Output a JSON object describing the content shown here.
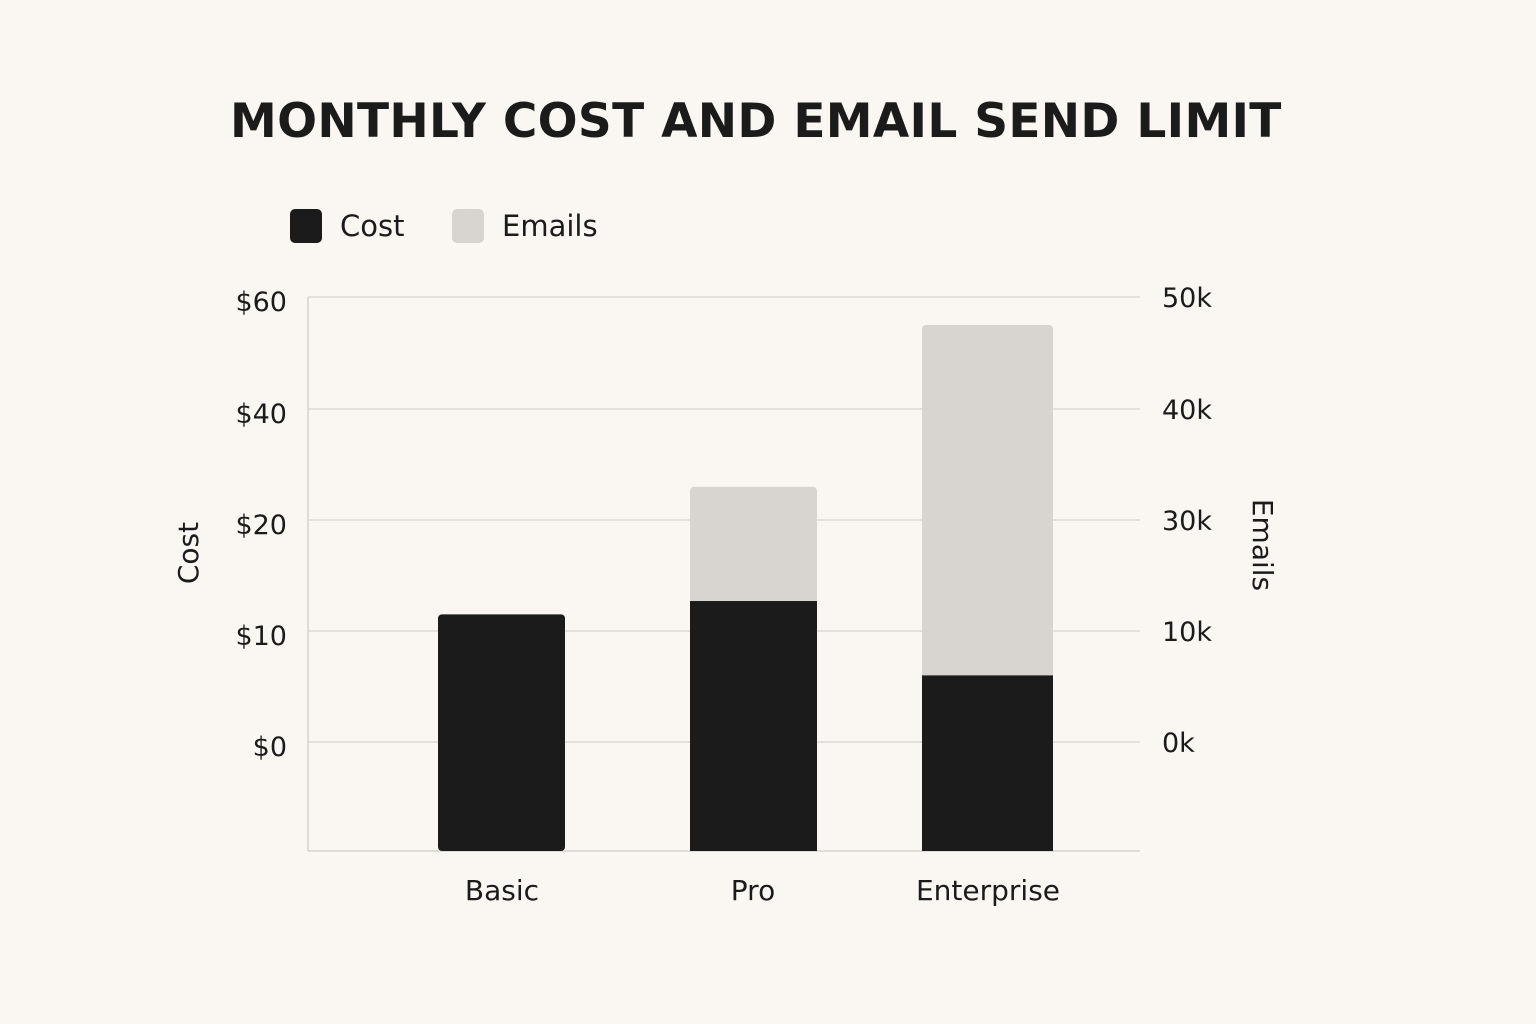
{
  "chart_data": {
    "type": "bar",
    "title": "MONTHLY COST AND EMAIL SEND LIMIT",
    "categories": [
      "Basic",
      "Pro",
      "Enterprise"
    ],
    "series": [
      {
        "name": "Cost",
        "axis": "left",
        "color": "#1b1b1b",
        "values": [
          11.5,
          12.7,
          6
        ]
      },
      {
        "name": "Emails",
        "axis": "right",
        "color": "#d8d4d0",
        "values": [
          0,
          33,
          47.5
        ],
        "unit": "k"
      }
    ],
    "ylabel": "Cost",
    "y2label": "Emails",
    "yticks": [
      "$0",
      "$10",
      "$20",
      "$40",
      "$60"
    ],
    "y2ticks": [
      "0k",
      "10k",
      "30k",
      "40k",
      "50k"
    ],
    "grid": true,
    "legend_position": "top-left",
    "stacked_display": true
  }
}
